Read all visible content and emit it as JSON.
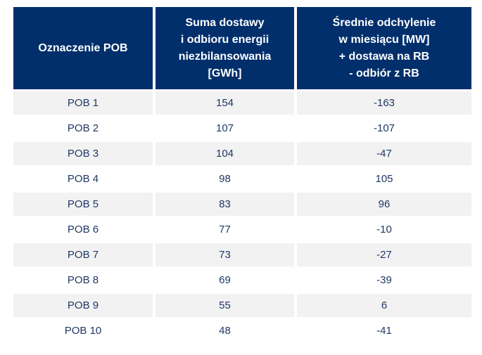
{
  "colors": {
    "header_bg": "#002F6C",
    "header_text": "#FFFFFF",
    "row_alt_bg": "#F2F2F2",
    "row_bg": "#FFFFFF",
    "data_text": "#1F3864"
  },
  "table": {
    "columns": [
      {
        "label": "Oznaczenie POB"
      },
      {
        "label": "Suma dostawy\ni odbioru energii\nniezbilansowania\n[GWh]"
      },
      {
        "label": "Średnie odchylenie\nw miesiącu [MW]\n+ dostawa na RB\n- odbiór z RB"
      }
    ],
    "rows": [
      {
        "pob": "POB 1",
        "sum_gwh": "154",
        "avg_mw": "-163"
      },
      {
        "pob": "POB 2",
        "sum_gwh": "107",
        "avg_mw": "-107"
      },
      {
        "pob": "POB 3",
        "sum_gwh": "104",
        "avg_mw": "-47"
      },
      {
        "pob": "POB 4",
        "sum_gwh": "98",
        "avg_mw": "105"
      },
      {
        "pob": "POB 5",
        "sum_gwh": "83",
        "avg_mw": "96"
      },
      {
        "pob": "POB 6",
        "sum_gwh": "77",
        "avg_mw": "-10"
      },
      {
        "pob": "POB 7",
        "sum_gwh": "73",
        "avg_mw": "-27"
      },
      {
        "pob": "POB 8",
        "sum_gwh": "69",
        "avg_mw": "-39"
      },
      {
        "pob": "POB 9",
        "sum_gwh": "55",
        "avg_mw": "6"
      },
      {
        "pob": "POB 10",
        "sum_gwh": "48",
        "avg_mw": "-41"
      }
    ]
  },
  "chart_data": {
    "type": "table",
    "columns": [
      "Oznaczenie POB",
      "Suma dostawy i odbioru energii niezbilansowania [GWh]",
      "Średnie odchylenie w miesiącu [MW] + dostawa na RB - odbiór z RB"
    ],
    "rows": [
      [
        "POB 1",
        154,
        -163
      ],
      [
        "POB 2",
        107,
        -107
      ],
      [
        "POB 3",
        104,
        -47
      ],
      [
        "POB 4",
        98,
        105
      ],
      [
        "POB 5",
        83,
        96
      ],
      [
        "POB 6",
        77,
        -10
      ],
      [
        "POB 7",
        73,
        -27
      ],
      [
        "POB 8",
        69,
        -39
      ],
      [
        "POB 9",
        55,
        6
      ],
      [
        "POB 10",
        48,
        -41
      ]
    ]
  }
}
